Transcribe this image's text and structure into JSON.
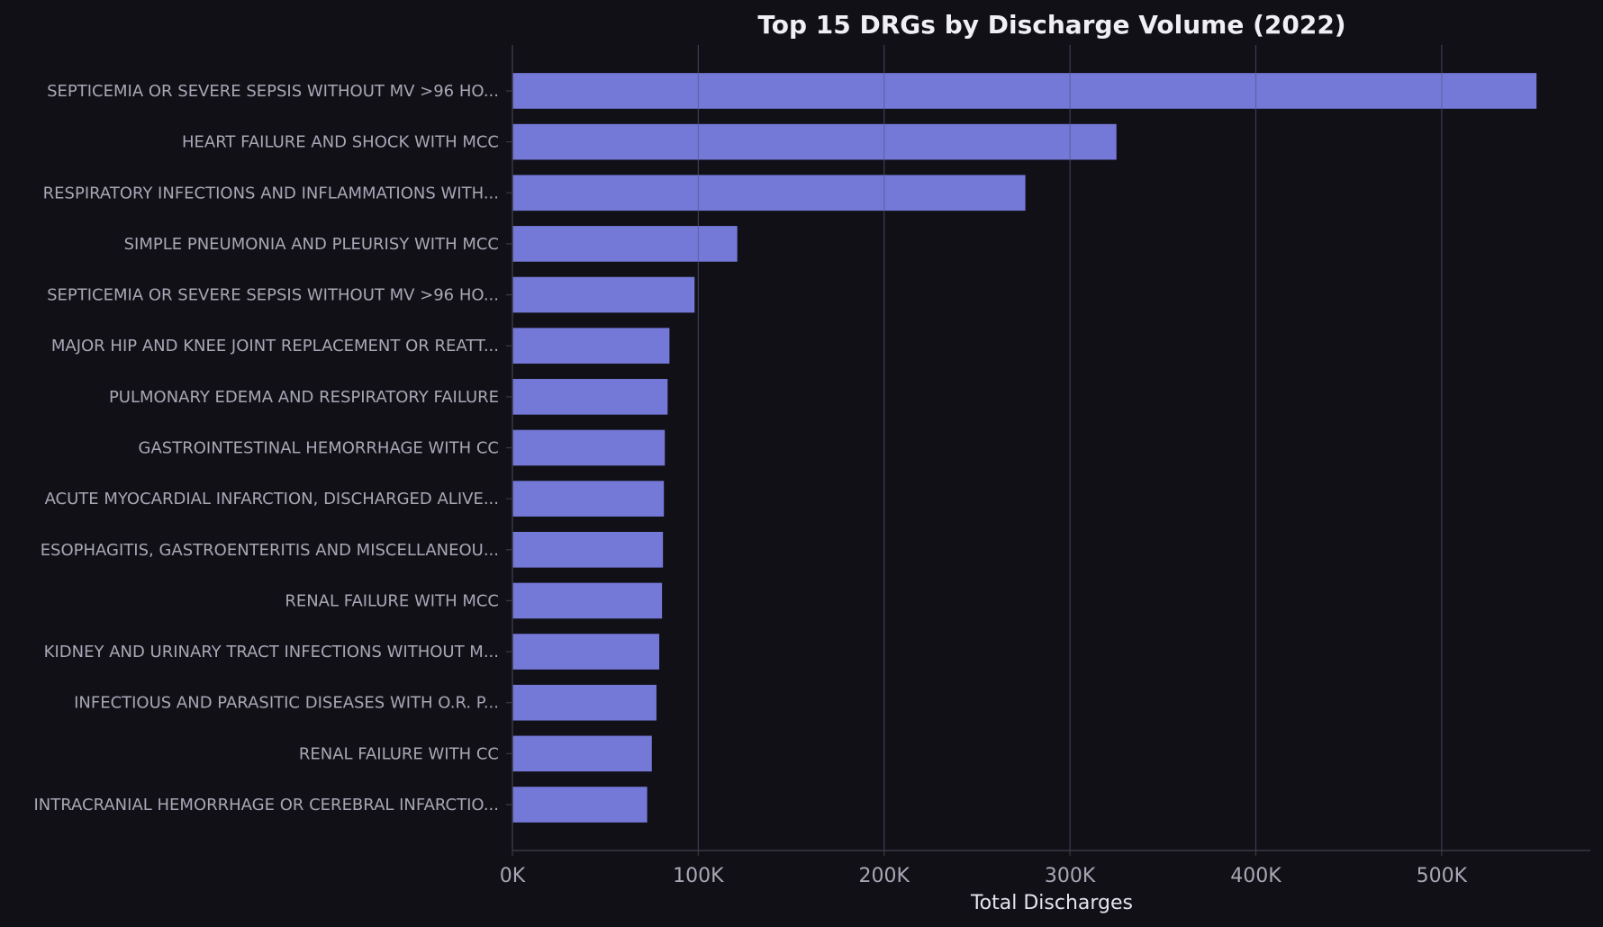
{
  "chart_data": {
    "type": "bar",
    "orientation": "horizontal",
    "title": "Top 15 DRGs by Discharge Volume (2022)",
    "xlabel": "Total Discharges",
    "ylabel": "",
    "xlim": [
      0,
      580000
    ],
    "xticks": [
      0,
      100000,
      200000,
      300000,
      400000,
      500000
    ],
    "xtick_labels": [
      "0K",
      "100K",
      "200K",
      "300K",
      "400K",
      "500K"
    ],
    "grid": true,
    "categories": [
      "SEPTICEMIA OR SEVERE SEPSIS WITHOUT MV >96 HO...",
      "HEART FAILURE AND SHOCK WITH MCC",
      "RESPIRATORY INFECTIONS AND INFLAMMATIONS WITH...",
      "SIMPLE PNEUMONIA AND PLEURISY WITH MCC",
      "SEPTICEMIA OR SEVERE SEPSIS WITHOUT MV >96 HO...",
      "MAJOR HIP AND KNEE JOINT REPLACEMENT OR REATT...",
      "PULMONARY EDEMA AND RESPIRATORY FAILURE",
      "GASTROINTESTINAL HEMORRHAGE WITH CC",
      "ACUTE MYOCARDIAL INFARCTION, DISCHARGED ALIVE...",
      "ESOPHAGITIS, GASTROENTERITIS AND MISCELLANEOU...",
      "RENAL FAILURE WITH MCC",
      "KIDNEY AND URINARY TRACT INFECTIONS WITHOUT M...",
      "INFECTIOUS AND PARASITIC DISEASES WITH O.R. P...",
      "RENAL FAILURE WITH CC",
      "INTRACRANIAL HEMORRHAGE OR CEREBRAL INFARCTIO..."
    ],
    "values": [
      551000,
      325000,
      276000,
      121000,
      98000,
      84500,
      83500,
      82000,
      81500,
      81000,
      80500,
      79000,
      77500,
      75000,
      72500
    ],
    "bar_color": "#7479d8",
    "background_color": "#111016",
    "grid_color": "#2a2933",
    "spine_color": "#3a3945"
  }
}
